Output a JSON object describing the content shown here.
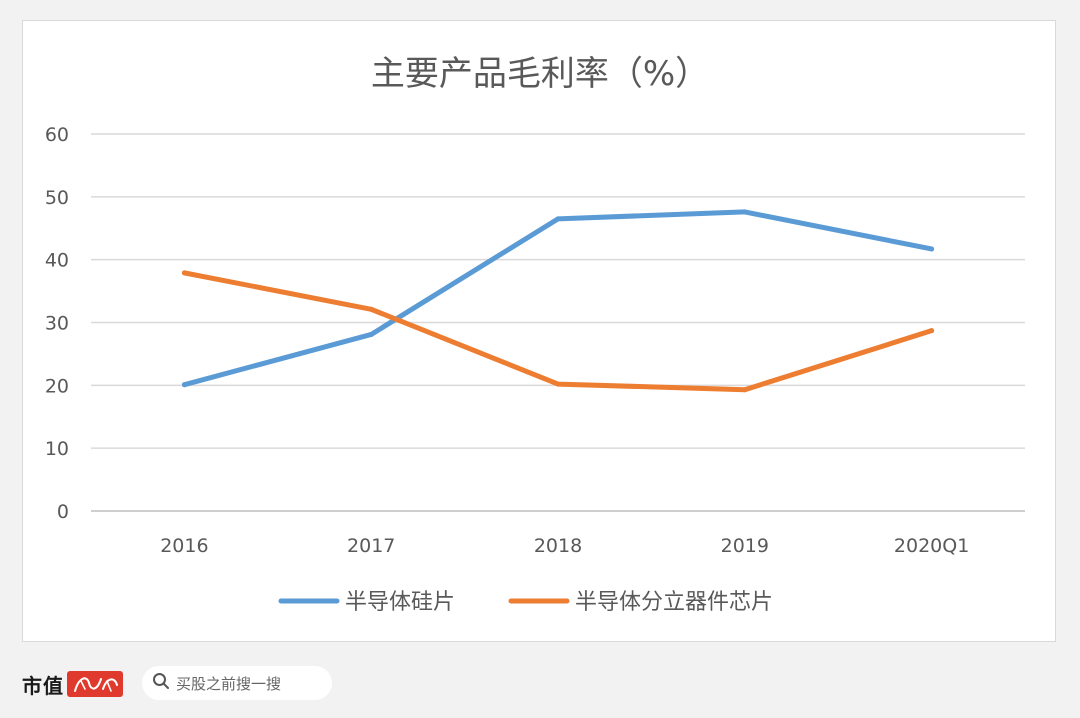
{
  "chart_data": {
    "type": "line",
    "title": "主要产品毛利率（%）",
    "categories": [
      "2016",
      "2017",
      "2018",
      "2019",
      "2020Q1"
    ],
    "ylim": [
      0,
      60
    ],
    "yticks": [
      0,
      10,
      20,
      30,
      40,
      50,
      60
    ],
    "grid": true,
    "legend_position": "bottom",
    "series": [
      {
        "name": "半导体硅片",
        "values": [
          20.1,
          28.1,
          46.5,
          47.6,
          41.7
        ],
        "color": "#5b9bd5"
      },
      {
        "name": "半导体分立器件芯片",
        "values": [
          37.9,
          32.1,
          20.2,
          19.3,
          28.7
        ],
        "color": "#ed7d31"
      }
    ]
  },
  "footer": {
    "brand": "市值",
    "search_placeholder": "买股之前搜一搜"
  },
  "icons": {
    "search": "search-icon",
    "seal": "brand-seal-icon"
  }
}
